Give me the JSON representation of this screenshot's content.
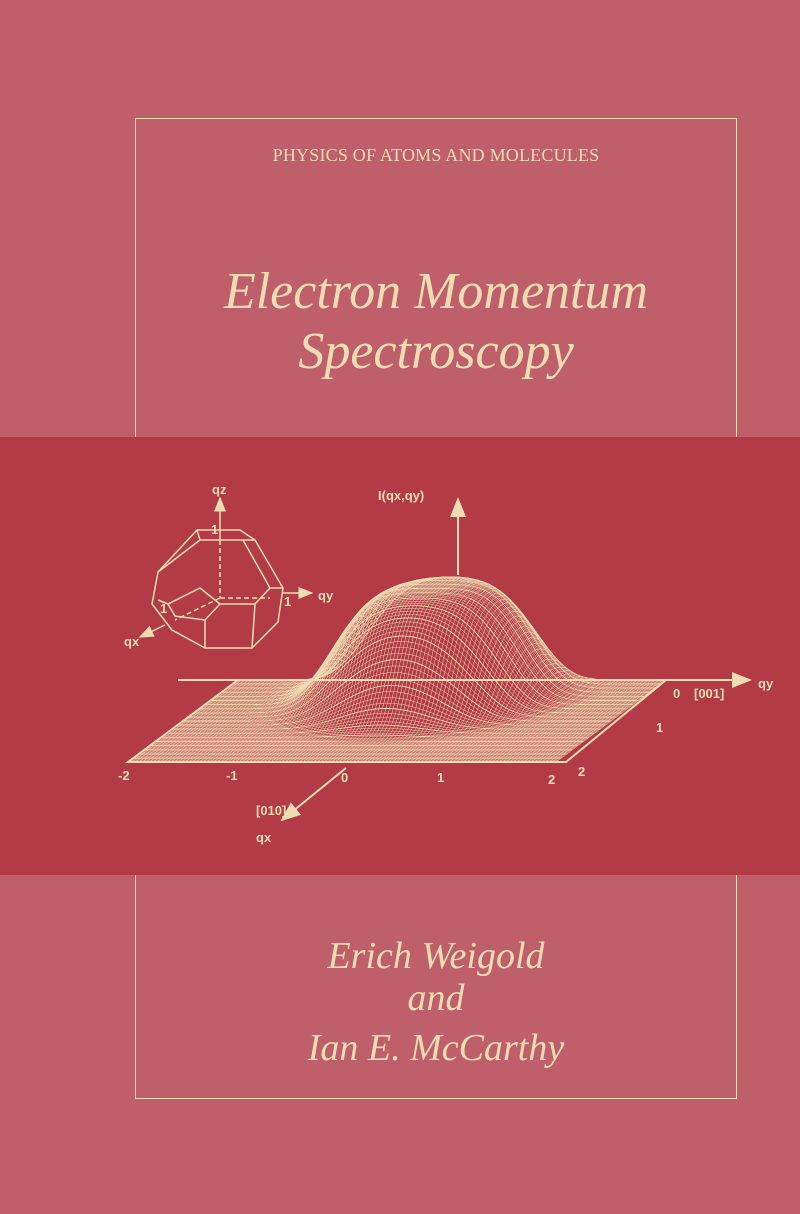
{
  "cover": {
    "series": "PHYSICS OF ATOMS AND MOLECULES",
    "title_line1": "Electron Momentum",
    "title_line2": "Spectroscopy",
    "author1": "Erich Weigold",
    "conjunction": "and",
    "author2": "Ian E. McCarthy"
  },
  "figure": {
    "intensity_label": "I(qx,qy)",
    "qz": "qz",
    "qy": "qy",
    "qx": "qx",
    "one": "1",
    "u_ticks": [
      "-2",
      "-1",
      "0",
      "1",
      "2"
    ],
    "v_ticks": [
      "0",
      "1",
      "2"
    ],
    "dir_001": "[001]",
    "dir_010": "[010]"
  },
  "colors": {
    "background": "#bf5f69",
    "band": "#b33b45",
    "ink": "#f0dcb4"
  }
}
